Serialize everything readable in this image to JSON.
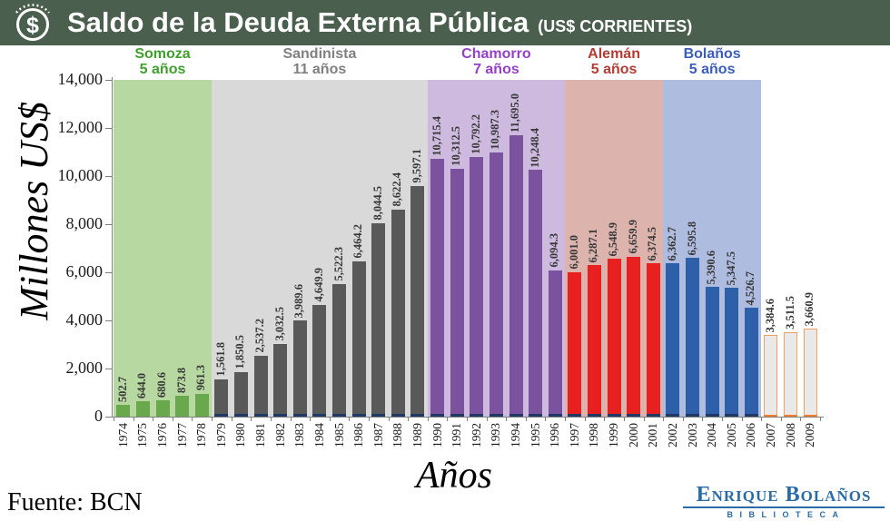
{
  "header": {
    "title": "Saldo de la Deuda Externa Pública",
    "subtitle": "(US$ CORRIENTES)",
    "icon": "dollar-coin-icon",
    "bg_color": "#4a5f4d"
  },
  "chart_data": {
    "type": "bar",
    "title": "Saldo de la Deuda Externa Pública (US$ CORRIENTES)",
    "xlabel": "Años",
    "ylabel": "Millones US$",
    "ylim": [
      0,
      14000
    ],
    "ytick_step": 2000,
    "yticks": [
      "0",
      "2,000",
      "4,000",
      "6,000",
      "8,000",
      "10,000",
      "12,000",
      "14,000"
    ],
    "grid": false,
    "legend": false,
    "categories": [
      "1974",
      "1975",
      "1976",
      "1977",
      "1978",
      "1979",
      "1980",
      "1981",
      "1982",
      "1983",
      "1984",
      "1985",
      "1986",
      "1987",
      "1988",
      "1989",
      "1990",
      "1991",
      "1992",
      "1993",
      "1994",
      "1995",
      "1996",
      "1997",
      "1998",
      "1999",
      "2000",
      "2001",
      "2002",
      "2003",
      "2004",
      "2005",
      "2006",
      "2007",
      "2008",
      "2009"
    ],
    "values": [
      502.7,
      644.0,
      680.6,
      873.8,
      961.3,
      1561.8,
      1850.5,
      2537.2,
      3032.5,
      3989.6,
      4649.9,
      5522.3,
      6464.2,
      8044.5,
      8622.4,
      9597.1,
      10715.4,
      10312.5,
      10792.2,
      10987.3,
      11695.0,
      10248.4,
      6094.3,
      6001.0,
      6287.1,
      6548.9,
      6659.9,
      6374.5,
      6362.7,
      6595.8,
      5390.6,
      5347.5,
      4526.7,
      3384.6,
      3511.5,
      3660.9
    ],
    "periods": [
      {
        "name": "Somoza",
        "duration": "5 años",
        "start_year": "1974",
        "end_year": "1978",
        "label_color": "#3fa02c",
        "bar_color": "#6aa84e",
        "band_color": "#b7d8a0",
        "bar_edge_color": null,
        "bar_border_color": null
      },
      {
        "name": "Sandinista",
        "duration": "11 años",
        "start_year": "1979",
        "end_year": "1989",
        "label_color": "#808080",
        "bar_color": "#595959",
        "band_color": "#d9d9d9",
        "bar_edge_color": "#203864",
        "bar_border_color": null
      },
      {
        "name": "Chamorro",
        "duration": "7 años",
        "start_year": "1990",
        "end_year": "1996",
        "label_color": "#9540c9",
        "bar_color": "#7a529e",
        "band_color": "#cebadf",
        "bar_edge_color": "#203864",
        "bar_border_color": null
      },
      {
        "name": "Alemán",
        "duration": "5 años",
        "start_year": "1997",
        "end_year": "2001",
        "label_color": "#b43c35",
        "bar_color": "#e8201f",
        "band_color": "#dcb4ad",
        "bar_edge_color": "#203864",
        "bar_border_color": null
      },
      {
        "name": "Bolaños",
        "duration": "5 años",
        "start_year": "2002",
        "end_year": "2006",
        "label_color": "#3a5dbd",
        "bar_color": "#2d60a9",
        "band_color": "#aebcdf",
        "bar_edge_color": "#203864",
        "bar_border_color": null
      },
      {
        "name": "",
        "duration": "",
        "start_year": "2007",
        "end_year": "2009",
        "label_color": null,
        "bar_color": "#e9e9e9",
        "band_color": null,
        "bar_edge_color": "#ed7d31",
        "bar_border_color": "#f0a35f"
      }
    ]
  },
  "footer": {
    "source": "Fuente: BCN",
    "logo_line1": "Enrique Bolaños",
    "logo_line2": "BIBLIOTECA",
    "logo_color": "#2b6ca8"
  }
}
